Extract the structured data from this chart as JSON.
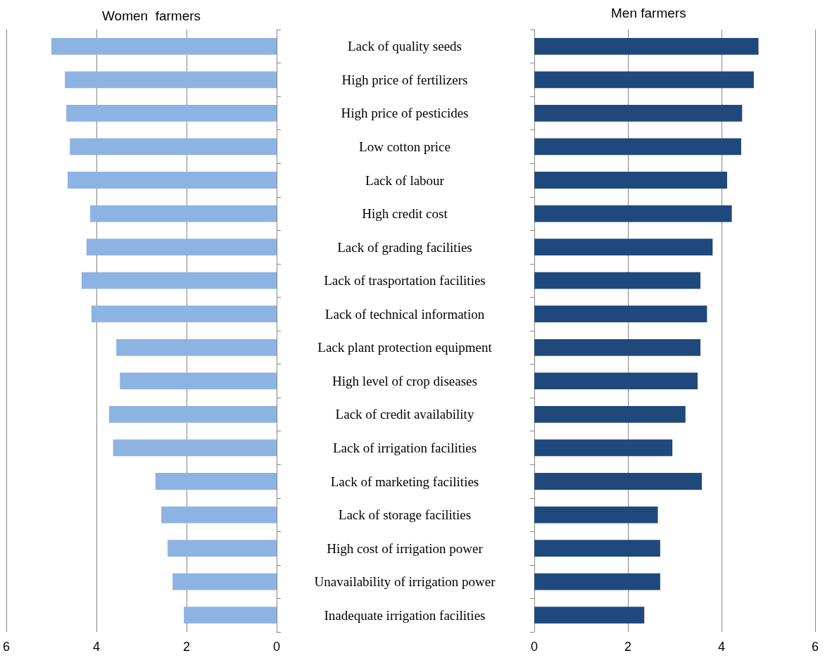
{
  "chart_data": [
    {
      "type": "bar",
      "orientation": "horizontal",
      "title": "Women  farmers",
      "categories": [
        "Lack of quality seeds",
        "High price of fertilizers",
        "High price of pesticides",
        "Low cotton price",
        "Lack of labour",
        "High credit cost",
        "Lack of grading facilities",
        "Lack of trasportation facilities",
        "Lack of technical information",
        "Lack plant protection equipment",
        "High level of crop diseases",
        "Lack of credit availability",
        "Lack of irrigation facilities",
        "Lack of marketing facilities",
        "Lack of storage facilities",
        "High cost of irrigation power",
        "Unavailability of irrigation power",
        "Inadequate irrigation facilities"
      ],
      "values": [
        5.0,
        4.7,
        4.67,
        4.59,
        4.64,
        4.14,
        4.22,
        4.33,
        4.11,
        3.56,
        3.48,
        3.72,
        3.63,
        2.69,
        2.56,
        2.42,
        2.31,
        2.06
      ],
      "color": "#8db3e2",
      "xlim": [
        6,
        0
      ],
      "xticks": [
        6,
        4,
        2,
        0
      ],
      "grid": "x"
    },
    {
      "type": "bar",
      "orientation": "horizontal",
      "title": "Men farmers",
      "categories": [
        null,
        null,
        null,
        null,
        null,
        null,
        null,
        null,
        null,
        null,
        null,
        null,
        null,
        null,
        null,
        null,
        null,
        null
      ],
      "values": [
        4.79,
        4.69,
        4.44,
        4.42,
        4.12,
        4.22,
        3.81,
        3.55,
        3.69,
        3.55,
        3.49,
        3.23,
        2.95,
        3.58,
        2.64,
        2.69,
        2.69,
        2.35
      ],
      "color": "#1f497d",
      "xlim": [
        0,
        6
      ],
      "xticks": [
        0,
        2,
        4,
        6
      ],
      "grid": "x",
      "tick_labels": "x"
    }
  ]
}
